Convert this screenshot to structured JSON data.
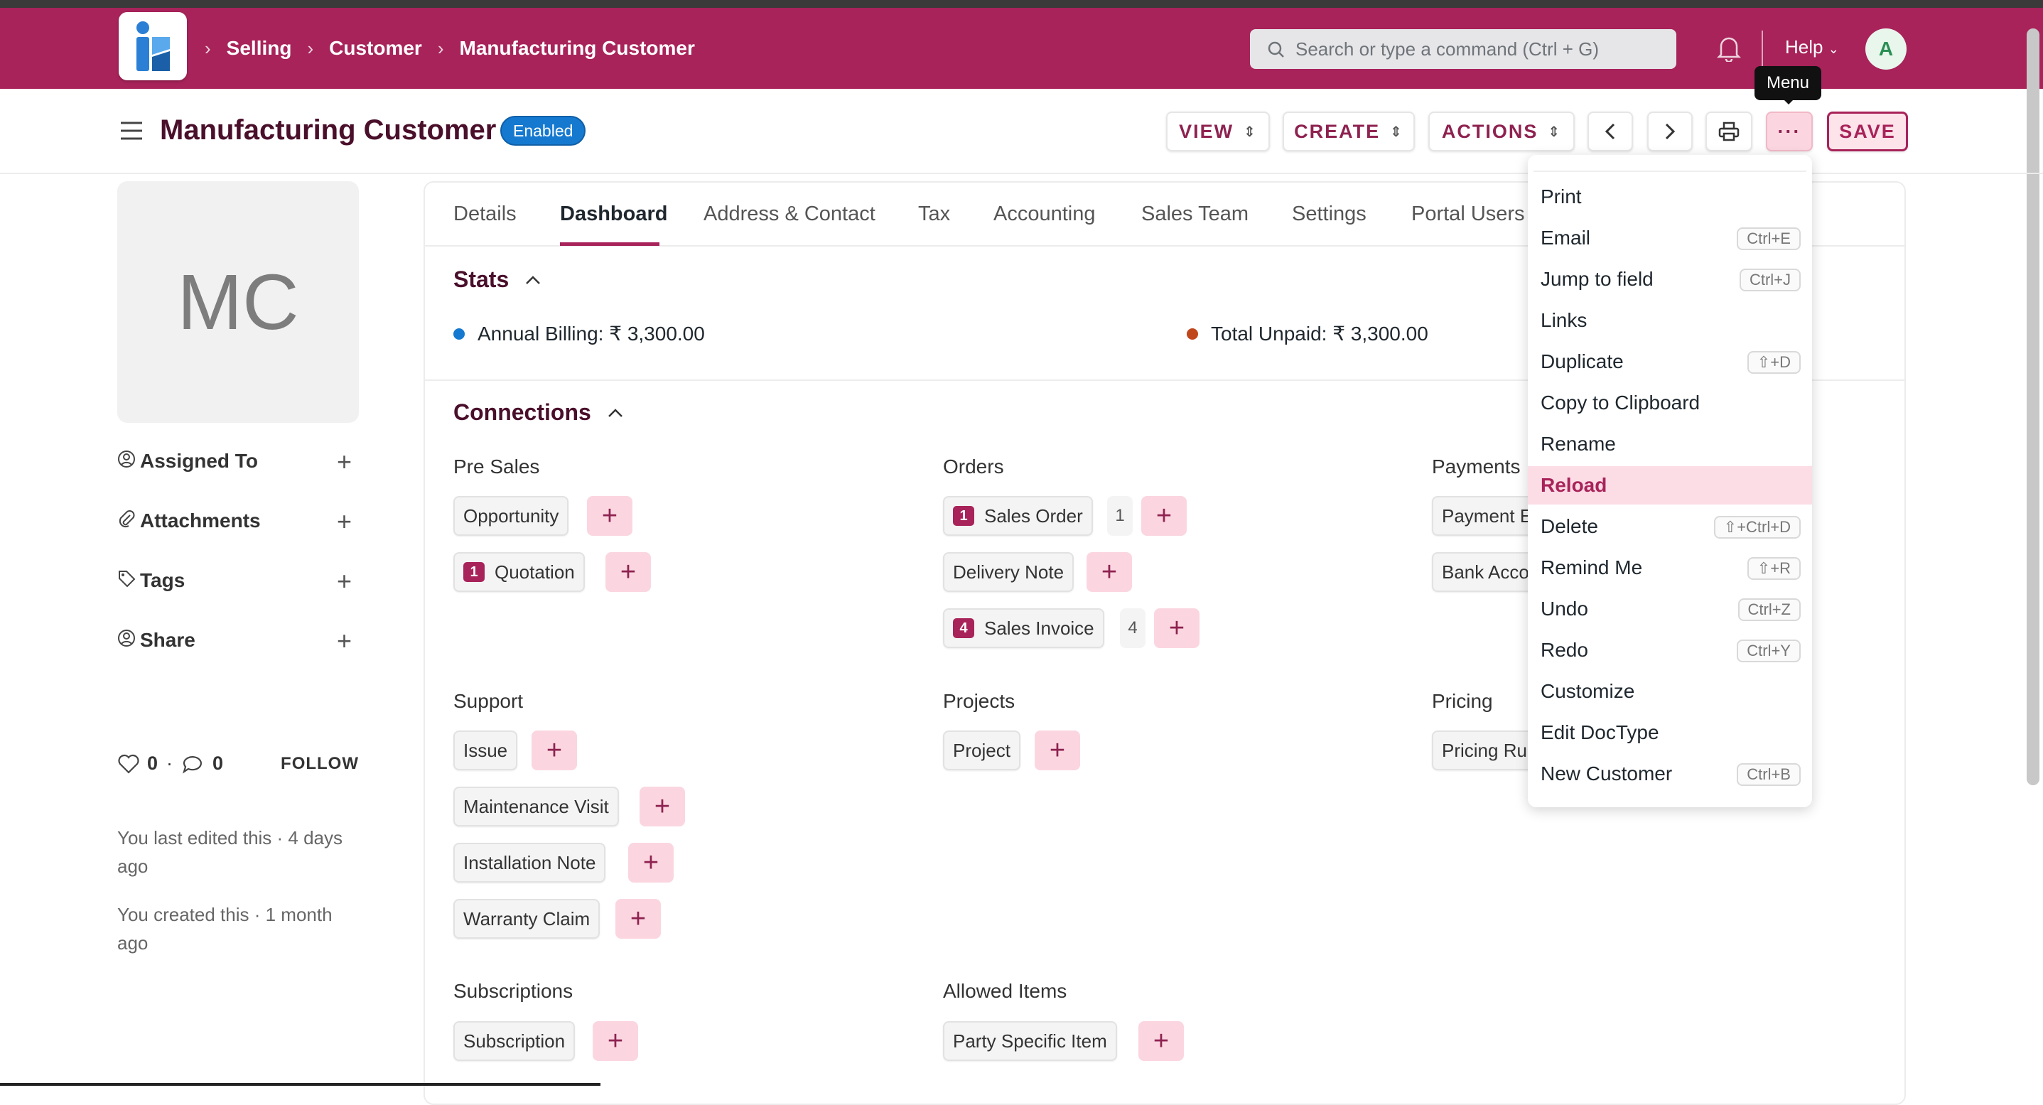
{
  "navbar": {
    "breadcrumbs": [
      "Selling",
      "Customer",
      "Manufacturing Customer"
    ],
    "search_placeholder": "Search or type a command (Ctrl + G)",
    "help_label": "Help",
    "avatar_letter": "A"
  },
  "page": {
    "title": "Manufacturing Customer",
    "status_badge": "Enabled",
    "view_label": "VIEW",
    "create_label": "CREATE",
    "actions_label": "ACTIONS",
    "menu_dots": "···",
    "save_label": "SAVE",
    "tooltip": "Menu"
  },
  "sidebar": {
    "initials": "MC",
    "items": [
      {
        "label": "Assigned To",
        "icon": "user-plus-icon"
      },
      {
        "label": "Attachments",
        "icon": "paperclip-icon"
      },
      {
        "label": "Tags",
        "icon": "tag-icon"
      },
      {
        "label": "Share",
        "icon": "share-user-icon"
      }
    ],
    "likes": "0",
    "comments": "0",
    "dot": "·",
    "follow_label": "FOLLOW",
    "last_edited": "You last edited this · 4 days ago",
    "created": "You created this · 1 month ago"
  },
  "tabs": [
    "Details",
    "Dashboard",
    "Address & Contact",
    "Tax",
    "Accounting",
    "Sales Team",
    "Settings",
    "Portal Users"
  ],
  "stats": {
    "heading": "Stats",
    "annual_billing": "Annual Billing: ₹ 3,300.00",
    "total_unpaid": "Total Unpaid: ₹ 3,300.00",
    "colors": {
      "annual": "#1579d0",
      "unpaid": "#c0461c"
    }
  },
  "connections": {
    "heading": "Connections",
    "groups": {
      "pre_sales": {
        "title": "Pre Sales",
        "opportunity": "Opportunity",
        "quotation": "Quotation",
        "quotation_count": "1"
      },
      "orders": {
        "title": "Orders",
        "sales_order": "Sales Order",
        "sales_order_badge": "1",
        "sales_order_count": "1",
        "delivery_note": "Delivery Note",
        "sales_invoice": "Sales Invoice",
        "sales_invoice_badge": "4",
        "sales_invoice_count": "4"
      },
      "payments": {
        "title": "Payments",
        "payment_entry": "Payment Entry",
        "bank_account": "Bank Account"
      },
      "support": {
        "title": "Support",
        "issue": "Issue",
        "maintenance_visit": "Maintenance Visit",
        "installation_note": "Installation Note",
        "warranty_claim": "Warranty Claim"
      },
      "projects": {
        "title": "Projects",
        "project": "Project"
      },
      "pricing": {
        "title": "Pricing",
        "pricing_rule": "Pricing Rule"
      },
      "subscriptions": {
        "title": "Subscriptions",
        "subscription": "Subscription"
      },
      "allowed_items": {
        "title": "Allowed Items",
        "party_specific_item": "Party Specific Item"
      }
    },
    "add_symbol": "+"
  },
  "menu": {
    "items": [
      {
        "label": "Print",
        "shortcut": ""
      },
      {
        "label": "Email",
        "shortcut": "Ctrl+E"
      },
      {
        "label": "Jump to field",
        "shortcut": "Ctrl+J"
      },
      {
        "label": "Links",
        "shortcut": ""
      },
      {
        "label": "Duplicate",
        "shortcut": "⇧+D"
      },
      {
        "label": "Copy to Clipboard",
        "shortcut": ""
      },
      {
        "label": "Rename",
        "shortcut": ""
      },
      {
        "label": "Reload",
        "shortcut": ""
      },
      {
        "label": "Delete",
        "shortcut": "⇧+Ctrl+D"
      },
      {
        "label": "Remind Me",
        "shortcut": "⇧+R"
      },
      {
        "label": "Undo",
        "shortcut": "Ctrl+Z"
      },
      {
        "label": "Redo",
        "shortcut": "Ctrl+Y"
      },
      {
        "label": "Customize",
        "shortcut": ""
      },
      {
        "label": "Edit DocType",
        "shortcut": ""
      },
      {
        "label": "New Customer",
        "shortcut": "Ctrl+B"
      }
    ]
  }
}
